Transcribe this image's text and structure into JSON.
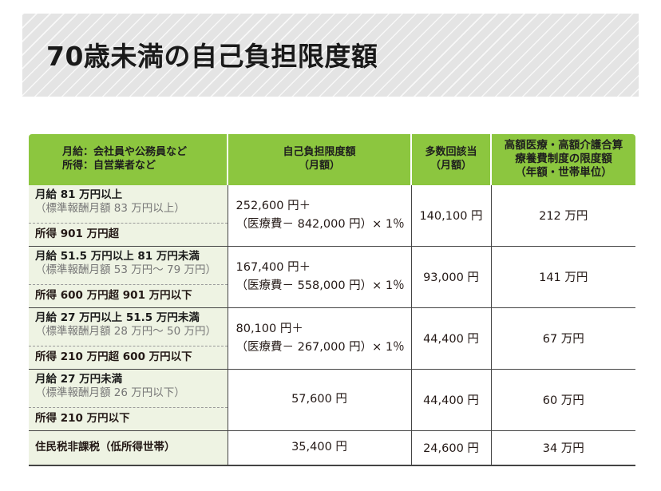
{
  "title": "70歳未満の自己負担限度額",
  "headers": {
    "category_line1": "月給：会社員や公務員など",
    "category_line2": "所得：自営業者など",
    "limit_line1": "自己負担限度額",
    "limit_line2": "（月額）",
    "multi_line1": "多数回該当",
    "multi_line2": "（月額）",
    "household_line1": "高額医療・高額介護合算",
    "household_line2": "療養費制度の限度額",
    "household_line3": "（年額・世帯単位）"
  },
  "rows": [
    {
      "salary": "月給 81 万円以上",
      "salary_note": "（標準報酬月額 83 万円以上）",
      "income": "所得 901 万円超",
      "limit_line1": "252,600 円＋",
      "limit_line2": "（医療費－ 842,000 円）× 1％",
      "multi": "140,100 円",
      "household": "212 万円"
    },
    {
      "salary": "月給 51.5 万円以上 81 万円未満",
      "salary_note": "（標準報酬月額 53 万円～ 79 万円）",
      "income": "所得 600 万円超 901 万円以下",
      "limit_line1": "167,400 円＋",
      "limit_line2": "（医療費－ 558,000 円）× 1％",
      "multi": "93,000 円",
      "household": "141 万円"
    },
    {
      "salary": "月給 27 万円以上 51.5 万円未満",
      "salary_note": "（標準報酬月額 28 万円～ 50 万円）",
      "income": "所得 210 万円超 600 万円以下",
      "limit_line1": "80,100 円＋",
      "limit_line2": "（医療費－ 267,000 円）× 1％",
      "multi": "44,400 円",
      "household": "67 万円"
    },
    {
      "salary": "月給 27 万円未満",
      "salary_note": "（標準報酬月額 26 万円以下）",
      "income": "所得 210 万円以下",
      "limit": "57,600 円",
      "multi": "44,400 円",
      "household": "60 万円"
    },
    {
      "category": "住民税非課税（低所得世帯）",
      "limit": "35,400 円",
      "multi": "24,600 円",
      "household": "34 万円"
    }
  ],
  "colors": {
    "header_green": "#8cc63f",
    "category_bg": "#eef3e3",
    "title_band": "#e4e4e4"
  }
}
